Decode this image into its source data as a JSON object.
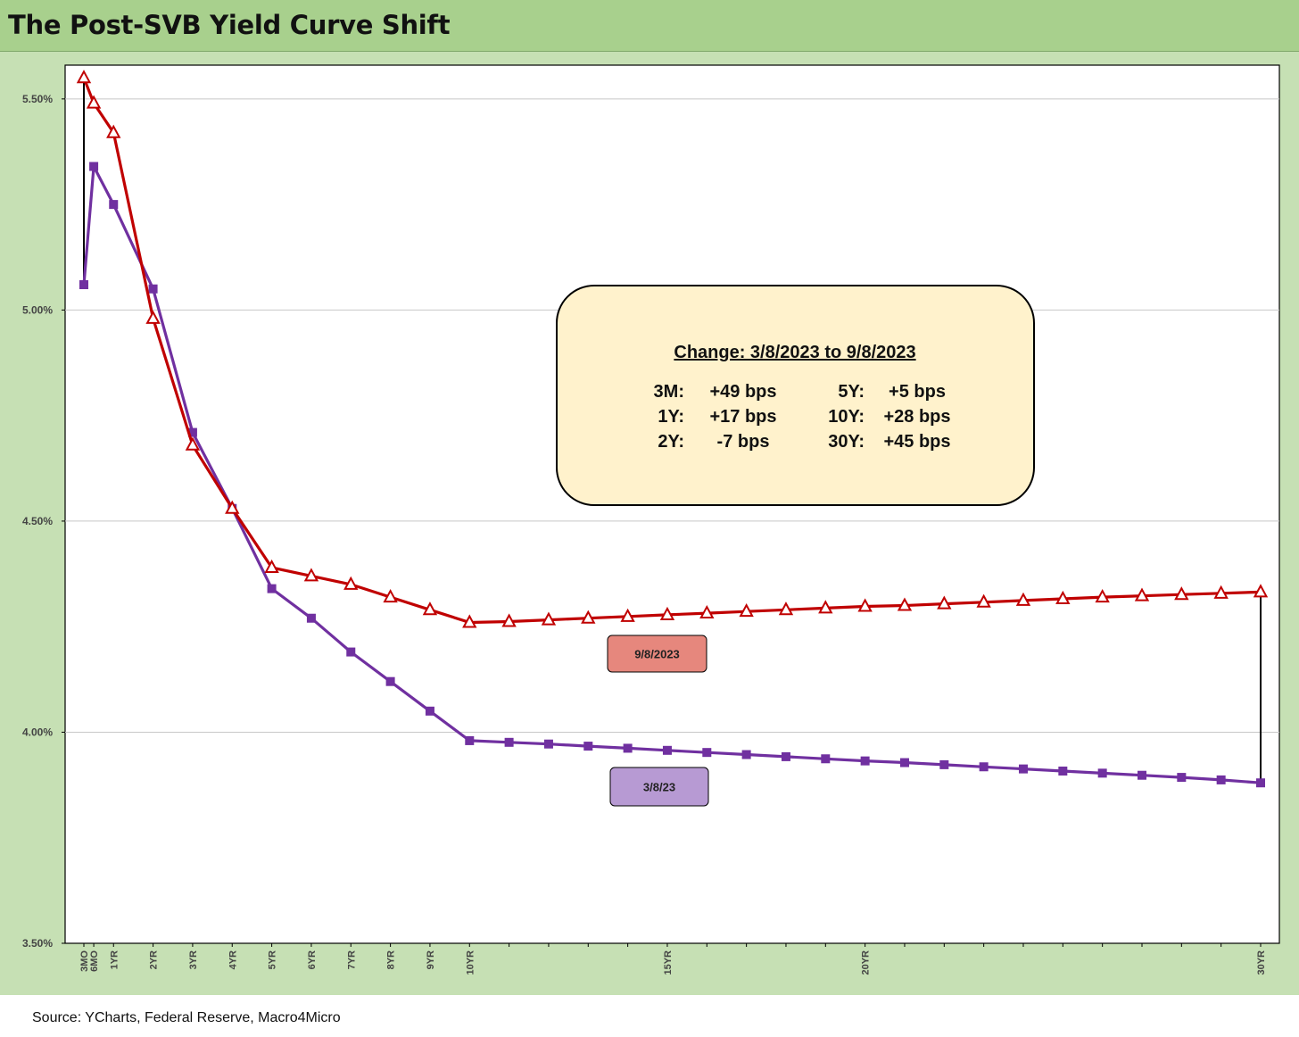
{
  "header": {
    "title": "The Post-SVB Yield Curve Shift"
  },
  "footer": {
    "source": "Source: YCharts, Federal Reserve, Macro4Micro"
  },
  "chart_data": {
    "type": "line",
    "title": "The Post-SVB Yield Curve Shift",
    "xlabel": "",
    "ylabel": "",
    "x": [
      0.25,
      0.5,
      1,
      2,
      3,
      4,
      5,
      6,
      7,
      8,
      9,
      10,
      11,
      12,
      13,
      14,
      15,
      16,
      17,
      18,
      19,
      20,
      21,
      22,
      23,
      24,
      25,
      26,
      27,
      28,
      29,
      30
    ],
    "x_tick_labels": [
      "3MO",
      "6MO",
      "1YR",
      "2YR",
      "3YR",
      "4YR",
      "5YR",
      "6YR",
      "7YR",
      "8YR",
      "9YR",
      "10YR",
      "",
      "",
      "",
      "",
      "15YR",
      "",
      "",
      "",
      "",
      "20YR",
      "",
      "",
      "",
      "",
      "",
      "",
      "",
      "",
      "",
      "30YR"
    ],
    "y_ticks": [
      "3.50%",
      "4.00%",
      "4.50%",
      "5.00%",
      "5.50%"
    ],
    "ylim": [
      3.5,
      5.58
    ],
    "grid": true,
    "series": [
      {
        "name": "9/8/2023",
        "color": "#c00000",
        "marker": "triangle",
        "values": [
          5.55,
          5.49,
          5.42,
          4.98,
          4.68,
          4.53,
          4.39,
          4.37,
          4.35,
          4.32,
          4.29,
          4.26,
          4.262,
          4.266,
          4.27,
          4.274,
          4.278,
          4.282,
          4.286,
          4.29,
          4.294,
          4.298,
          4.3,
          4.304,
          4.308,
          4.312,
          4.316,
          4.32,
          4.323,
          4.326,
          4.329,
          4.332
        ]
      },
      {
        "name": "3/8/23",
        "color": "#7030a0",
        "marker": "square",
        "values": [
          5.06,
          5.34,
          5.25,
          5.05,
          4.71,
          4.53,
          4.34,
          4.27,
          4.19,
          4.12,
          4.05,
          3.98,
          3.976,
          3.972,
          3.967,
          3.962,
          3.957,
          3.952,
          3.947,
          3.942,
          3.937,
          3.932,
          3.928,
          3.923,
          3.918,
          3.913,
          3.908,
          3.903,
          3.898,
          3.893,
          3.887,
          3.88
        ]
      }
    ],
    "labels": [
      {
        "text": "9/8/2023",
        "fill": "#e6877d"
      },
      {
        "text": "3/8/23",
        "fill": "#b79ad3"
      }
    ],
    "annotation": {
      "title": "Change: 3/8/2023 to 9/8/2023",
      "rows": [
        {
          "l_tenor": "3M:",
          "l_val": "+49 bps",
          "r_tenor": "5Y:",
          "r_val": "+5 bps"
        },
        {
          "l_tenor": "1Y:",
          "l_val": "+17 bps",
          "r_tenor": "10Y:",
          "r_val": "+28 bps"
        },
        {
          "l_tenor": "2Y:",
          "l_val": "-7 bps",
          "r_tenor": "30Y:",
          "r_val": "+45 bps"
        }
      ]
    }
  }
}
